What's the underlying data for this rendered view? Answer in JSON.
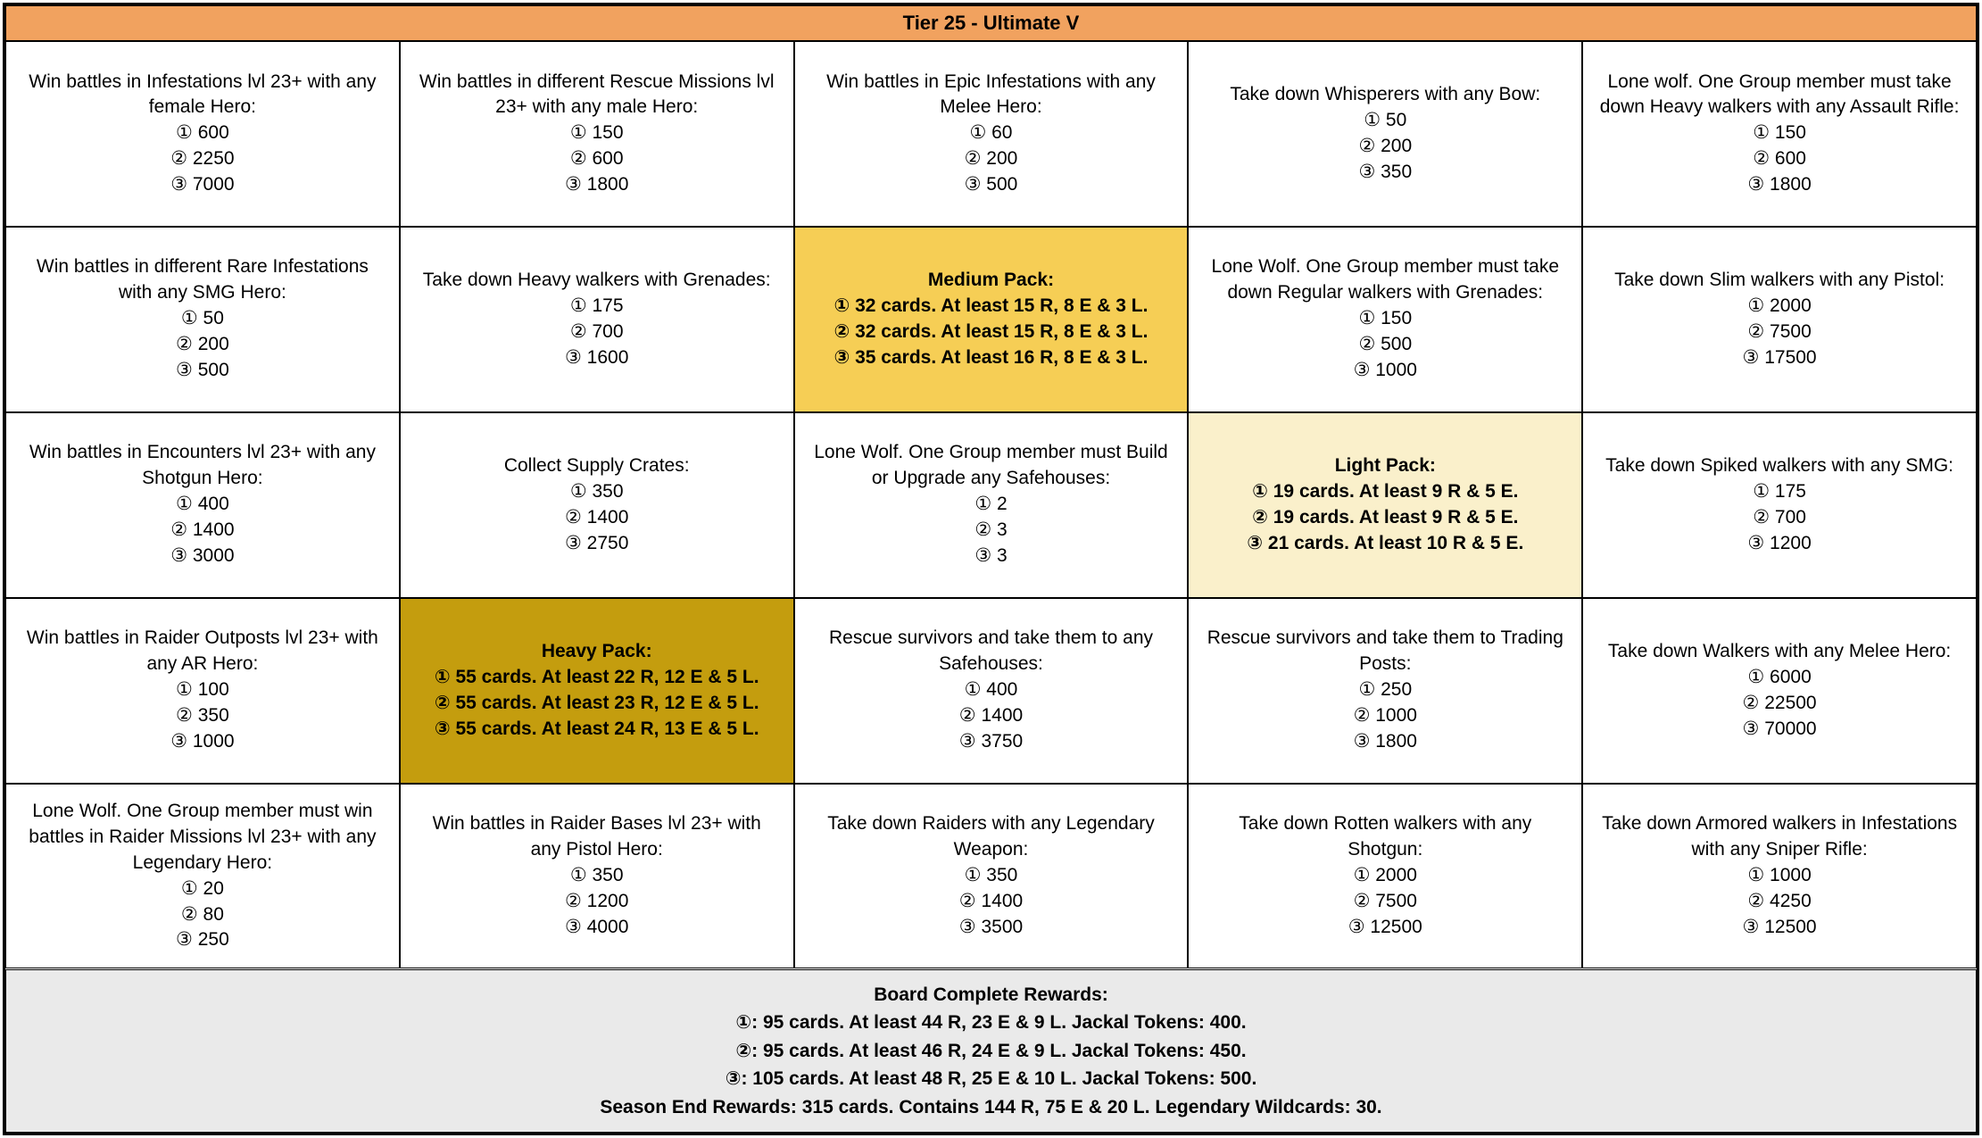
{
  "board": {
    "header": "Tier 25 - Ultimate V",
    "cells": [
      {
        "title": "Win battles in Infestations lvl 23+ with any female Hero:",
        "rewards": [
          "① 600",
          "② 2250",
          "③ 7000"
        ]
      },
      {
        "title": "Win battles in different Rescue Missions lvl 23+ with any male Hero:",
        "rewards": [
          "① 150",
          "② 600",
          "③ 1800"
        ]
      },
      {
        "title": "Win battles in Epic Infestations with any Melee Hero:",
        "rewards": [
          "① 60",
          "② 200",
          "③ 500"
        ]
      },
      {
        "title": "Take down Whisperers with any Bow:",
        "rewards": [
          "① 50",
          "② 200",
          "③ 350"
        ]
      },
      {
        "title": "Lone wolf. One Group member must take down Heavy walkers with any Assault Rifle:",
        "rewards": [
          "① 150",
          "② 600",
          "③ 1800"
        ]
      },
      {
        "title": "Win battles in different Rare Infestations with any SMG Hero:",
        "rewards": [
          "① 50",
          "② 200",
          "③ 500"
        ]
      },
      {
        "title": "Take down Heavy walkers with Grenades:",
        "rewards": [
          "① 175",
          "② 700",
          "③ 1600"
        ]
      },
      {
        "title": "Medium Pack:",
        "rewards": [
          "① 32 cards. At least 15 R, 8 E & 3 L.",
          "② 32 cards. At least 15 R, 8 E & 3 L.",
          "③ 35 cards. At least 16 R, 8 E & 3 L."
        ]
      },
      {
        "title": "Lone Wolf. One Group member must take down Regular walkers with Grenades:",
        "rewards": [
          "① 150",
          "② 500",
          "③ 1000"
        ]
      },
      {
        "title": "Take down Slim walkers with any Pistol:",
        "rewards": [
          "① 2000",
          "② 7500",
          "③ 17500"
        ]
      },
      {
        "title": "Win battles in Encounters lvl 23+ with any Shotgun Hero:",
        "rewards": [
          "① 400",
          "② 1400",
          "③ 3000"
        ]
      },
      {
        "title": "Collect Supply Crates:",
        "rewards": [
          "① 350",
          "② 1400",
          "③ 2750"
        ]
      },
      {
        "title": "Lone Wolf. One Group member must Build or Upgrade any Safehouses:",
        "rewards": [
          "① 2",
          "② 3",
          "③ 3"
        ]
      },
      {
        "title": "Light Pack:",
        "rewards": [
          "① 19 cards. At least 9 R & 5 E.",
          "② 19 cards. At least 9 R & 5 E.",
          "③ 21 cards. At least 10 R & 5 E."
        ]
      },
      {
        "title": "Take down Spiked walkers with any SMG:",
        "rewards": [
          "① 175",
          "② 700",
          "③ 1200"
        ]
      },
      {
        "title": "Win battles in Raider Outposts lvl 23+ with any AR Hero:",
        "rewards": [
          "① 100",
          "② 350",
          "③ 1000"
        ]
      },
      {
        "title": "Heavy Pack:",
        "rewards": [
          "① 55 cards. At least 22 R, 12 E & 5 L.",
          "② 55 cards. At least 23 R, 12 E & 5 L.",
          "③ 55 cards. At least 24 R, 13 E & 5 L."
        ]
      },
      {
        "title": "Rescue survivors and take them to any Safehouses:",
        "rewards": [
          "① 400",
          "② 1400",
          "③ 3750"
        ]
      },
      {
        "title": "Rescue survivors and take them to Trading Posts:",
        "rewards": [
          "① 250",
          "② 1000",
          "③ 1800"
        ]
      },
      {
        "title": "Take down Walkers with any Melee Hero:",
        "rewards": [
          "① 6000",
          "② 22500",
          "③ 70000"
        ]
      },
      {
        "title": "Lone Wolf. One Group member must win battles in Raider Missions lvl 23+ with any Legendary Hero:",
        "rewards": [
          "① 20",
          "② 80",
          "③ 250"
        ]
      },
      {
        "title": "Win battles in Raider Bases lvl 23+ with any Pistol Hero:",
        "rewards": [
          "① 350",
          "② 1200",
          "③ 4000"
        ]
      },
      {
        "title": "Take down Raiders with any Legendary Weapon:",
        "rewards": [
          "① 350",
          "② 1400",
          "③ 3500"
        ]
      },
      {
        "title": "Take down Rotten walkers with any Shotgun:",
        "rewards": [
          "① 2000",
          "② 7500",
          "③ 12500"
        ]
      },
      {
        "title": "Take down Armored walkers in Infestations with any Sniper Rifle:",
        "rewards": [
          "① 1000",
          "② 4250",
          "③ 12500"
        ]
      }
    ],
    "footer": {
      "title": "Board Complete Rewards:",
      "lines": [
        "①: 95 cards. At least 44 R, 23 E & 9 L. Jackal Tokens: 400.",
        "②: 95 cards. At least 46 R, 24 E & 9 L. Jackal Tokens: 450.",
        "③: 105 cards. At least 48 R, 25 E & 10 L. Jackal Tokens: 500.",
        "Season End Rewards: 315 cards. Contains 144 R, 75 E & 20 L. Legendary Wildcards: 30."
      ]
    }
  },
  "colors": {
    "header_bg": "#F1A25F",
    "medium_pack_bg": "#F6CE55",
    "light_pack_bg": "#FAF0CB",
    "heavy_pack_bg": "#C49D0E",
    "footer_bg": "#EAEAEA",
    "cell_bg": "#FFFFFF",
    "border": "#000000"
  }
}
